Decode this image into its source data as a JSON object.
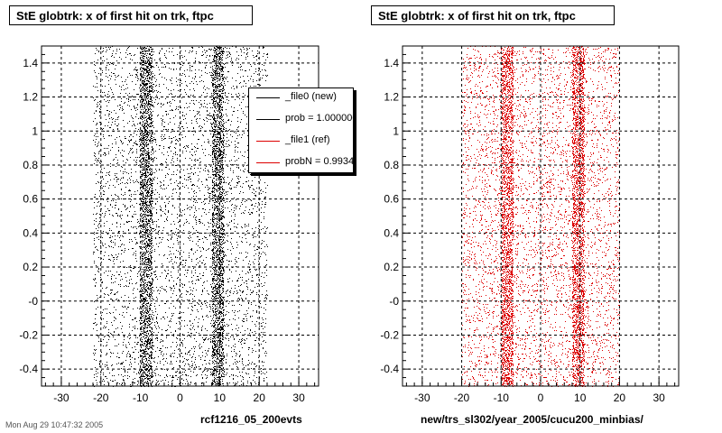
{
  "panels": [
    {
      "title": "StE globtrk: x of first hit on trk, ftpc",
      "xlabel": "rcf1216_05_200evts",
      "color": "#000000"
    },
    {
      "title": "StE globtrk: x of first hit on trk, ftpc",
      "xlabel": "new/trs_sl302/year_2005/cucu200_minbias/",
      "color": "#dd0000"
    }
  ],
  "legend": {
    "items": [
      {
        "label": "_file0 (new)",
        "color": "#000000"
      },
      {
        "label": "prob = 1.000000",
        "color": "#000000"
      },
      {
        "label": "_file1 (ref)",
        "color": "#dd0000"
      },
      {
        "label": "probN = 0.993430",
        "color": "#dd0000"
      }
    ]
  },
  "footer": "Mon Aug 29 10:47:32 2005",
  "chart_data": [
    {
      "type": "scatter",
      "title": "StE globtrk: x of first hit on trk, ftpc",
      "xlabel": "rcf1216_05_200evts",
      "ylabel": "",
      "xlim": [
        -35,
        35
      ],
      "ylim": [
        -0.5,
        1.5
      ],
      "xticks": [
        -30,
        -20,
        -10,
        0,
        10,
        20,
        30
      ],
      "yticks": [
        -0.4,
        -0.2,
        0,
        0.2,
        0.4,
        0.6,
        0.8,
        1,
        1.2,
        1.4
      ],
      "ytick_labels": [
        "-0.4",
        "-0.2",
        "-0",
        "0.2",
        "0.4",
        "0.6",
        "0.8",
        "1",
        "1.2",
        "1.4"
      ],
      "grid": true,
      "series": [
        {
          "x_min": -22,
          "x_max": 22,
          "dense_bands": [
            [
              -10,
              -7
            ],
            [
              8,
              11
            ]
          ],
          "color": "#000000"
        }
      ]
    },
    {
      "type": "scatter",
      "title": "StE globtrk: x of first hit on trk, ftpc",
      "xlabel": "new/trs_sl302/year_2005/cucu200_minbias/",
      "ylabel": "",
      "xlim": [
        -35,
        35
      ],
      "ylim": [
        -0.5,
        1.5
      ],
      "xticks": [
        -30,
        -20,
        -10,
        0,
        10,
        20,
        30
      ],
      "yticks": [
        -0.4,
        -0.2,
        0,
        0.2,
        0.4,
        0.6,
        0.8,
        1,
        1.2,
        1.4
      ],
      "ytick_labels": [
        "-0.4",
        "-0.2",
        "-0",
        "0.2",
        "0.4",
        "0.6",
        "0.8",
        "1",
        "1.2",
        "1.4"
      ],
      "grid": true,
      "series": [
        {
          "x_min": -20,
          "x_max": 20,
          "dense_bands": [
            [
              -10,
              -7
            ],
            [
              8,
              11
            ]
          ],
          "color": "#dd0000"
        }
      ]
    }
  ]
}
